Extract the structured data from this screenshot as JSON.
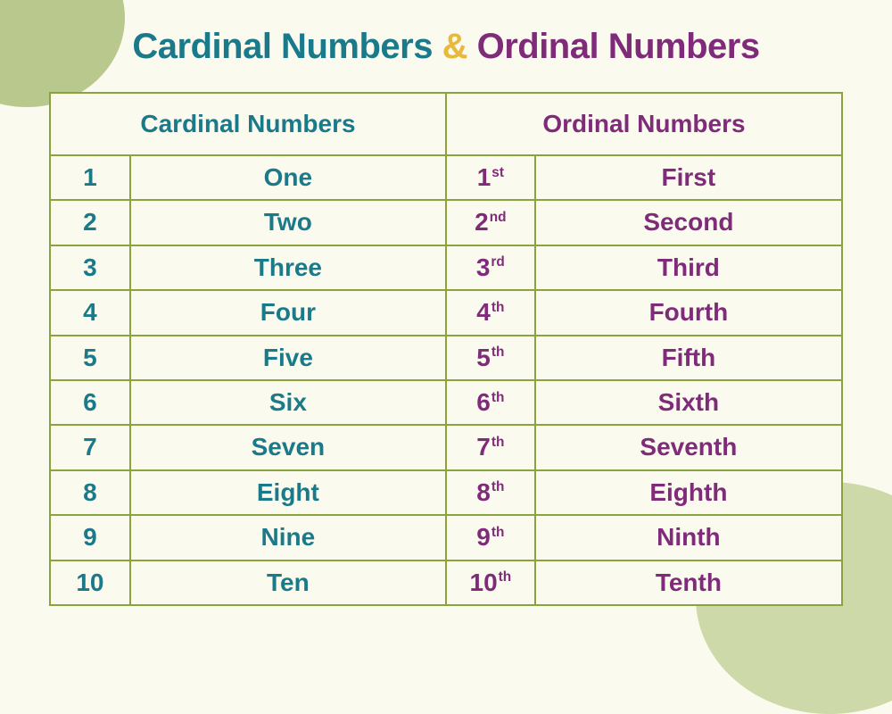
{
  "title": {
    "part1": "Cardinal Numbers",
    "amp": "&",
    "part2": "Ordinal Numbers"
  },
  "headers": {
    "cardinal": "Cardinal Numbers",
    "ordinal": "Ordinal Numbers"
  },
  "rows": [
    {
      "cnum": "1",
      "cword": "One",
      "onum": "1",
      "osuf": "st",
      "oword": "First"
    },
    {
      "cnum": "2",
      "cword": "Two",
      "onum": "2",
      "osuf": "nd",
      "oword": "Second"
    },
    {
      "cnum": "3",
      "cword": "Three",
      "onum": "3",
      "osuf": "rd",
      "oword": "Third"
    },
    {
      "cnum": "4",
      "cword": "Four",
      "onum": "4",
      "osuf": "th",
      "oword": "Fourth"
    },
    {
      "cnum": "5",
      "cword": "Five",
      "onum": "5",
      "osuf": "th",
      "oword": "Fifth"
    },
    {
      "cnum": "6",
      "cword": "Six",
      "onum": "6",
      "osuf": "th",
      "oword": "Sixth"
    },
    {
      "cnum": "7",
      "cword": "Seven",
      "onum": "7",
      "osuf": "th",
      "oword": "Seventh"
    },
    {
      "cnum": "8",
      "cword": "Eight",
      "onum": "8",
      "osuf": "th",
      "oword": "Eighth"
    },
    {
      "cnum": "9",
      "cword": "Nine",
      "onum": "9",
      "osuf": "th",
      "oword": "Ninth"
    },
    {
      "cnum": "10",
      "cword": "Ten",
      "onum": "10",
      "osuf": "th",
      "oword": "Tenth"
    }
  ],
  "colors": {
    "teal": "#1b7a8a",
    "gold": "#e7b93e",
    "plum": "#802b7a",
    "border": "#8aa33d",
    "bg": "#fbfaef",
    "corner1": "#b9c88c",
    "corner2": "#cdd9a8"
  }
}
